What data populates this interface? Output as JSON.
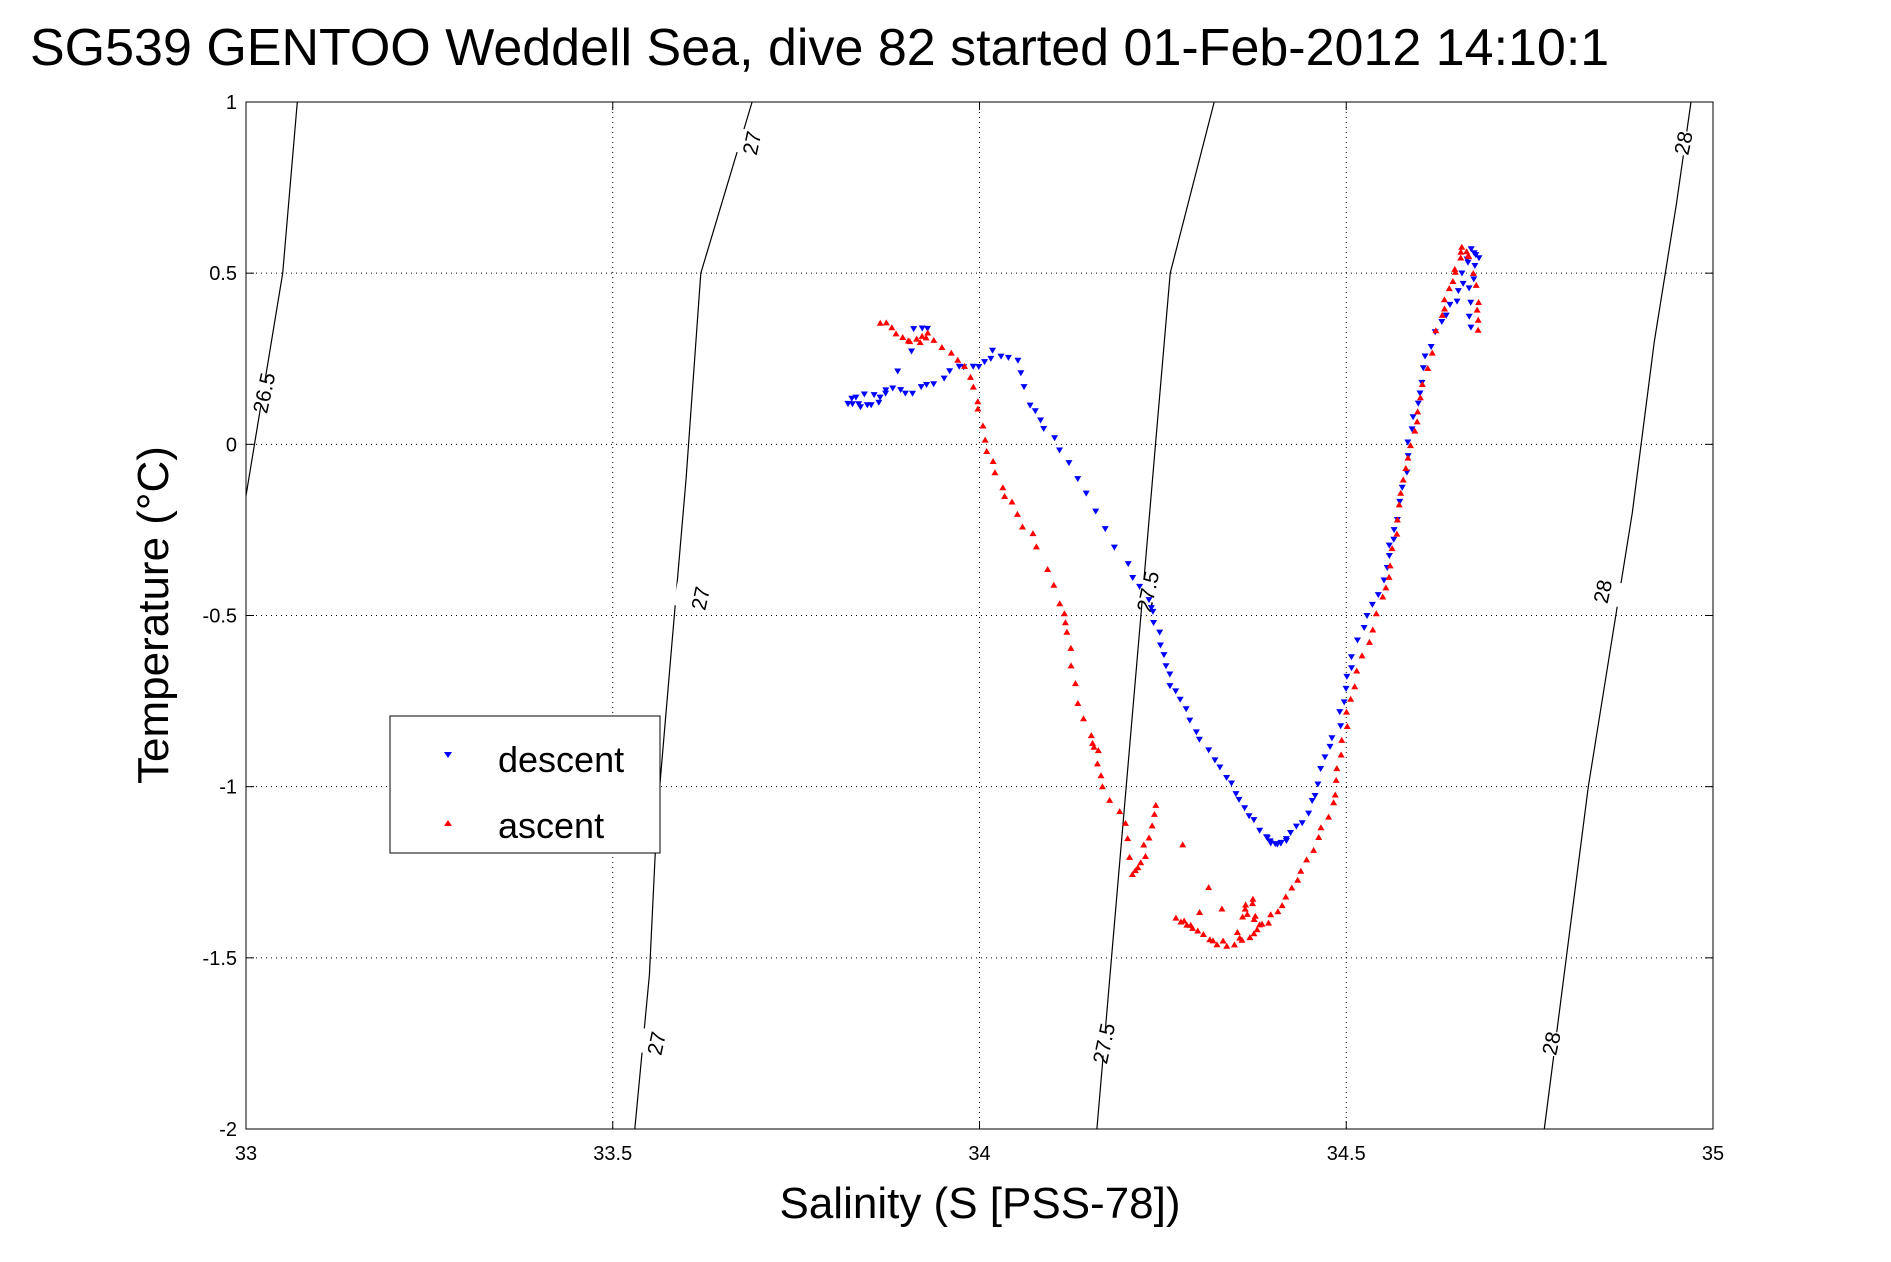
{
  "chart_data": {
    "type": "scatter",
    "title": "SG539 GENTOO Weddell Sea, dive 82 started 01-Feb-2012 14:10:1",
    "xlabel": "Salinity (S [PSS-78])",
    "ylabel": "Temperature (°C)",
    "xlim": [
      33,
      35
    ],
    "ylim": [
      -2,
      1
    ],
    "xticks": [
      33,
      33.5,
      34,
      34.5,
      35
    ],
    "xtick_labels": [
      "33",
      "33.5",
      "34",
      "34.5",
      "35"
    ],
    "yticks": [
      1,
      0.5,
      0,
      -0.5,
      -1,
      -1.5,
      -2
    ],
    "ytick_labels": [
      "1",
      "0.5",
      "0",
      "-0.5",
      "-1",
      "-1.5",
      "-2"
    ],
    "grid": true,
    "legend_position": "center-left",
    "legend": [
      {
        "name": "descent",
        "color": "#0000ff",
        "marker": "triangle-down"
      },
      {
        "name": "ascent",
        "color": "#ff0000",
        "marker": "triangle-up"
      }
    ],
    "density_contours": [
      {
        "label": "26.5",
        "points": [
          [
            33.07,
            1.0
          ],
          [
            33.05,
            0.5
          ],
          [
            33.0,
            -0.15
          ]
        ],
        "label_positions": [
          [
            33.025,
            0.15
          ]
        ]
      },
      {
        "label": "27",
        "points": [
          [
            33.69,
            1.0
          ],
          [
            33.62,
            0.5
          ],
          [
            33.6,
            -0.1
          ],
          [
            33.58,
            -0.6
          ],
          [
            33.56,
            -1.1
          ],
          [
            33.55,
            -1.55
          ],
          [
            33.53,
            -2.0
          ]
        ],
        "label_positions": [
          [
            33.69,
            0.88
          ],
          [
            33.62,
            -0.45
          ],
          [
            33.56,
            -1.75
          ]
        ]
      },
      {
        "label": "27.5",
        "points": [
          [
            34.32,
            1.0
          ],
          [
            34.26,
            0.5
          ],
          [
            34.24,
            0.0
          ],
          [
            34.22,
            -0.5
          ],
          [
            34.2,
            -1.0
          ],
          [
            34.18,
            -1.5
          ],
          [
            34.16,
            -2.0
          ]
        ],
        "label_positions": [
          [
            34.23,
            -0.43
          ],
          [
            34.17,
            -1.75
          ]
        ]
      },
      {
        "label": "28",
        "points": [
          [
            34.97,
            1.0
          ],
          [
            34.95,
            0.7
          ],
          [
            34.92,
            0.3
          ],
          [
            34.89,
            -0.2
          ],
          [
            34.86,
            -0.6
          ],
          [
            34.83,
            -1.0
          ],
          [
            34.8,
            -1.5
          ],
          [
            34.77,
            -2.0
          ]
        ],
        "label_positions": [
          [
            34.96,
            0.88
          ],
          [
            34.85,
            -0.43
          ],
          [
            34.78,
            -1.75
          ]
        ]
      }
    ],
    "series": [
      {
        "name": "descent",
        "color": "#0000ff",
        "marker": "triangle-down",
        "path": [
          [
            34.67,
            0.34
          ],
          [
            34.67,
            0.45
          ],
          [
            34.68,
            0.55
          ],
          [
            34.67,
            0.57
          ],
          [
            34.66,
            0.5
          ],
          [
            34.65,
            0.42
          ],
          [
            34.63,
            0.36
          ],
          [
            34.61,
            0.25
          ],
          [
            34.6,
            0.15
          ],
          [
            34.59,
            0.05
          ],
          [
            34.58,
            -0.08
          ],
          [
            34.57,
            -0.22
          ],
          [
            34.56,
            -0.3
          ],
          [
            34.55,
            -0.4
          ],
          [
            34.53,
            -0.5
          ],
          [
            34.51,
            -0.62
          ],
          [
            34.5,
            -0.72
          ],
          [
            34.49,
            -0.82
          ],
          [
            34.47,
            -0.92
          ],
          [
            34.46,
            -1.02
          ],
          [
            34.44,
            -1.1
          ],
          [
            34.42,
            -1.15
          ],
          [
            34.41,
            -1.16
          ],
          [
            34.4,
            -1.17
          ],
          [
            34.39,
            -1.15
          ],
          [
            34.37,
            -1.08
          ],
          [
            34.35,
            -1.02
          ],
          [
            34.33,
            -0.95
          ],
          [
            34.3,
            -0.87
          ],
          [
            34.28,
            -0.78
          ],
          [
            34.26,
            -0.7
          ],
          [
            34.25,
            -0.62
          ],
          [
            34.24,
            -0.52
          ],
          [
            34.23,
            -0.45
          ],
          [
            34.2,
            -0.35
          ],
          [
            34.16,
            -0.2
          ],
          [
            34.12,
            -0.05
          ],
          [
            34.09,
            0.05
          ],
          [
            34.07,
            0.12
          ],
          [
            34.05,
            0.25
          ],
          [
            34.02,
            0.27
          ],
          [
            34.0,
            0.23
          ],
          [
            33.97,
            0.22
          ],
          [
            33.94,
            0.18
          ],
          [
            33.91,
            0.15
          ],
          [
            33.88,
            0.16
          ],
          [
            33.86,
            0.12
          ],
          [
            33.84,
            0.11
          ],
          [
            33.82,
            0.12
          ],
          [
            33.83,
            0.13
          ],
          [
            33.87,
            0.16
          ],
          [
            33.93,
            0.33
          ],
          [
            33.9,
            0.35
          ]
        ],
        "points_per_segment": 3
      },
      {
        "name": "ascent",
        "color": "#ff0000",
        "marker": "triangle-up",
        "path": [
          [
            34.68,
            0.34
          ],
          [
            34.68,
            0.42
          ],
          [
            34.67,
            0.55
          ],
          [
            34.66,
            0.58
          ],
          [
            34.65,
            0.52
          ],
          [
            34.64,
            0.45
          ],
          [
            34.63,
            0.38
          ],
          [
            34.61,
            0.22
          ],
          [
            34.6,
            0.1
          ],
          [
            34.59,
            0.0
          ],
          [
            34.58,
            -0.1
          ],
          [
            34.57,
            -0.22
          ],
          [
            34.56,
            -0.35
          ],
          [
            34.55,
            -0.45
          ],
          [
            34.53,
            -0.58
          ],
          [
            34.51,
            -0.7
          ],
          [
            34.5,
            -0.82
          ],
          [
            34.49,
            -0.95
          ],
          [
            34.48,
            -1.05
          ],
          [
            34.46,
            -1.15
          ],
          [
            34.44,
            -1.25
          ],
          [
            34.42,
            -1.32
          ],
          [
            34.4,
            -1.38
          ],
          [
            34.38,
            -1.42
          ],
          [
            34.36,
            -1.44
          ],
          [
            34.34,
            -1.46
          ],
          [
            34.32,
            -1.45
          ],
          [
            34.3,
            -1.42
          ],
          [
            34.28,
            -1.4
          ],
          [
            34.27,
            -1.38
          ],
          [
            34.36,
            -1.35
          ],
          [
            34.38,
            -1.4
          ],
          [
            34.37,
            -1.32
          ],
          [
            34.35,
            -1.42
          ],
          [
            34.24,
            -1.05
          ],
          [
            34.23,
            -1.15
          ],
          [
            34.22,
            -1.22
          ],
          [
            34.21,
            -1.25
          ],
          [
            34.2,
            -1.1
          ],
          [
            34.17,
            -1.0
          ],
          [
            34.16,
            -0.9
          ],
          [
            34.15,
            -0.85
          ],
          [
            34.13,
            -0.7
          ],
          [
            34.12,
            -0.55
          ],
          [
            34.11,
            -0.47
          ],
          [
            34.08,
            -0.3
          ],
          [
            34.05,
            -0.2
          ],
          [
            34.03,
            -0.12
          ],
          [
            34.01,
            -0.02
          ],
          [
            34.0,
            0.1
          ],
          [
            33.99,
            0.2
          ],
          [
            33.96,
            0.27
          ],
          [
            33.93,
            0.33
          ],
          [
            33.92,
            0.3
          ],
          [
            33.9,
            0.31
          ],
          [
            33.88,
            0.34
          ],
          [
            33.86,
            0.37
          ]
        ],
        "points_per_segment": 3
      }
    ]
  }
}
